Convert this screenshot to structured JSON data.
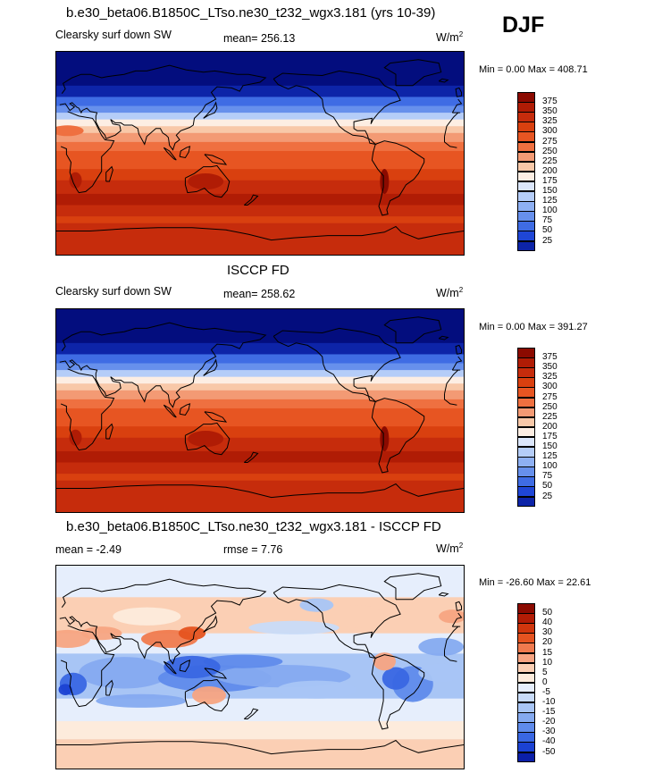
{
  "season": "DJF",
  "panels": [
    {
      "title": "b.e30_beta06.B1850C_LTso.ne30_t232_wgx3.181 (yrs 10-39)",
      "left_label": "Clearsky surf down SW",
      "center_label": "mean= 256.13",
      "units_base": "W/m",
      "units_exp": "2",
      "minmax": "Min =   0.00 Max = 408.71",
      "kind": "field",
      "colorbar_labels": [
        "375",
        "350",
        "325",
        "300",
        "275",
        "250",
        "225",
        "200",
        "175",
        "150",
        "125",
        "100",
        "75",
        "50",
        "25"
      ]
    },
    {
      "title": "ISCCP FD",
      "left_label": "Clearsky surf down SW",
      "center_label": "mean= 258.62",
      "units_base": "W/m",
      "units_exp": "2",
      "minmax": "Min =   0.00 Max = 391.27",
      "kind": "field",
      "colorbar_labels": [
        "375",
        "350",
        "325",
        "300",
        "275",
        "250",
        "225",
        "200",
        "175",
        "150",
        "125",
        "100",
        "75",
        "50",
        "25"
      ]
    },
    {
      "title": "b.e30_beta06.B1850C_LTso.ne30_t232_wgx3.181 - ISCCP FD",
      "left_label": "mean =  -2.49",
      "center_label": "rmse =   7.76",
      "units_base": "W/m",
      "units_exp": "2",
      "minmax": "Min = -26.60 Max =  22.61",
      "kind": "diff",
      "colorbar_labels": [
        "50",
        "40",
        "30",
        "20",
        "15",
        "10",
        "5",
        "0",
        "-5",
        "-10",
        "-15",
        "-20",
        "-30",
        "-40",
        "-50"
      ]
    }
  ],
  "colors": {
    "field_scale": [
      "#8b0a00",
      "#b01c05",
      "#c62c0c",
      "#d9400f",
      "#e75522",
      "#ef7040",
      "#f39a74",
      "#f8c8a8",
      "#fdeee3",
      "#dbe6fb",
      "#b5cdf8",
      "#8eb0f3",
      "#6790ec",
      "#3f6ce4",
      "#1f46d6",
      "#0d24a8",
      "#030d7e"
    ],
    "diff_scale": [
      "#8b0a00",
      "#b21c05",
      "#d0360d",
      "#e55320",
      "#f07a4e",
      "#f7a482",
      "#fbcfb4",
      "#fdebdc",
      "#e6eefc",
      "#c8dbf9",
      "#a8c5f5",
      "#85aaf0",
      "#5f8beb",
      "#3967e3",
      "#1b42d3",
      "#0b1fa8",
      "#030d7e"
    ]
  }
}
